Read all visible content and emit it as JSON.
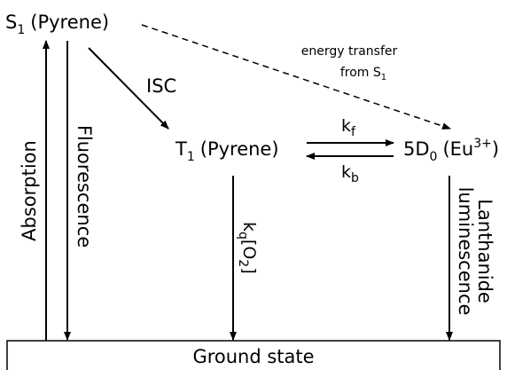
{
  "nodes": {
    "s1": {
      "symbol": "S",
      "subscript": "1",
      "label": "(Pyrene)"
    },
    "t1": {
      "symbol": "T",
      "subscript": "1",
      "label": "(Pyrene)"
    },
    "eu": {
      "symbol": "5D",
      "subscript": "0",
      "label": "(Eu",
      "superscript": "3+",
      "close": ")"
    },
    "ground": {
      "label": "Ground state"
    }
  },
  "edges": {
    "absorption": {
      "label": "Absorption"
    },
    "fluorescence": {
      "label": "Fluorescence"
    },
    "isc": {
      "label": "ISC"
    },
    "energy_transfer": {
      "line1": "energy transfer",
      "line2": "from S",
      "line2_subscript": "1"
    },
    "kf": {
      "symbol": "k",
      "subscript": "f"
    },
    "kb": {
      "symbol": "k",
      "subscript": "b"
    },
    "quench": {
      "symbol": "k",
      "subscript": "q",
      "middle": "[O",
      "subscript2": "2",
      "close": "]"
    },
    "lanthanide": {
      "line1": "Lanthanide",
      "line2": "luminescence"
    }
  }
}
